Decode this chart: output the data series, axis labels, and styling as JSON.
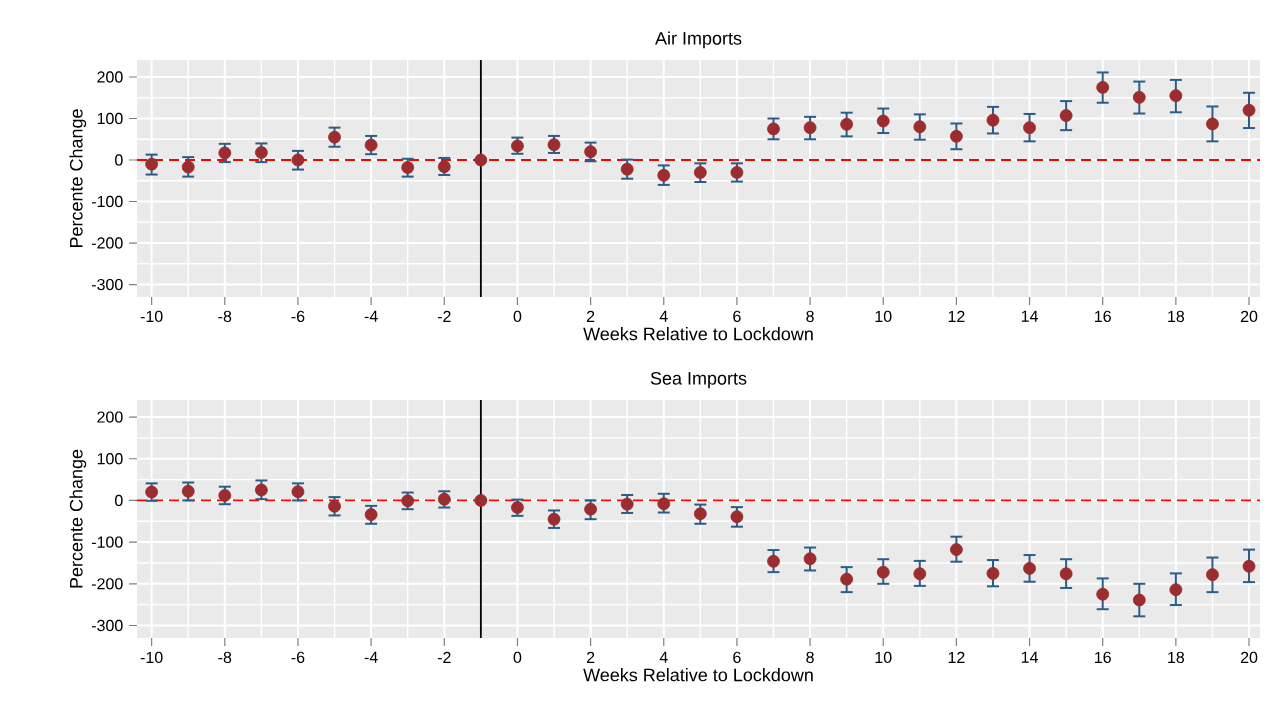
{
  "chart_data": [
    {
      "type": "scatter",
      "title": "Air Imports",
      "xlabel": "Weeks Relative to Lockdown",
      "ylabel": "Percente Change",
      "x": [
        -10,
        -9,
        -8,
        -7,
        -6,
        -5,
        -4,
        -3,
        -2,
        -1,
        0,
        1,
        2,
        3,
        4,
        5,
        6,
        7,
        8,
        9,
        10,
        11,
        12,
        13,
        14,
        15,
        16,
        17,
        18,
        19,
        20
      ],
      "series": [
        {
          "color": "#9b2d30",
          "values": [
            -10,
            -17,
            17,
            18,
            0,
            55,
            36,
            -18,
            -16,
            0,
            34,
            37,
            20,
            -22,
            -37,
            -30,
            -30,
            75,
            78,
            86,
            94,
            80,
            57,
            96,
            78,
            107,
            175,
            151,
            155,
            87,
            120
          ],
          "errors": [
            [
              -35,
              13
            ],
            [
              -40,
              7
            ],
            [
              -5,
              39
            ],
            [
              -5,
              40
            ],
            [
              -23,
              22
            ],
            [
              32,
              78
            ],
            [
              14,
              58
            ],
            [
              -40,
              3
            ],
            [
              -36,
              5
            ],
            null,
            [
              15,
              54
            ],
            [
              17,
              58
            ],
            [
              -3,
              42
            ],
            [
              -45,
              1
            ],
            [
              -60,
              -13
            ],
            [
              -53,
              -8
            ],
            [
              -52,
              -8
            ],
            [
              50,
              100
            ],
            [
              50,
              104
            ],
            [
              57,
              114
            ],
            [
              65,
              124
            ],
            [
              49,
              110
            ],
            [
              26,
              88
            ],
            [
              64,
              128
            ],
            [
              45,
              111
            ],
            [
              72,
              142
            ],
            [
              138,
              211
            ],
            [
              112,
              189
            ],
            [
              115,
              193
            ],
            [
              45,
              129
            ],
            [
              77,
              162
            ]
          ]
        }
      ],
      "xlim": [
        -10.4,
        20.3
      ],
      "ylim": [
        -330,
        241
      ],
      "xticks": [
        -10,
        -8,
        -6,
        -4,
        -2,
        0,
        2,
        4,
        6,
        8,
        10,
        12,
        14,
        16,
        18,
        20
      ],
      "yticks": [
        -300,
        -200,
        -100,
        0,
        100,
        200
      ],
      "ref_lines": [
        {
          "axis": "y",
          "value": 0,
          "color": "#ff0000",
          "line_style": "dashed"
        },
        {
          "axis": "x",
          "value": -1,
          "color": "#000000",
          "line_style": "solid"
        }
      ],
      "grid": true,
      "marker": "circle"
    },
    {
      "type": "scatter",
      "title": "Sea Imports",
      "xlabel": "Weeks Relative to Lockdown",
      "ylabel": "Percente Change",
      "x": [
        -10,
        -9,
        -8,
        -7,
        -6,
        -5,
        -4,
        -3,
        -2,
        -1,
        0,
        1,
        2,
        3,
        4,
        5,
        6,
        7,
        8,
        9,
        10,
        11,
        12,
        13,
        14,
        15,
        16,
        17,
        18,
        19,
        20
      ],
      "series": [
        {
          "color": "#9b2d30",
          "values": [
            20,
            22,
            12,
            25,
            21,
            -14,
            -34,
            -1,
            3,
            0,
            -17,
            -45,
            -21,
            -9,
            -8,
            -32,
            -39,
            -146,
            -140,
            -189,
            -172,
            -176,
            -118,
            -175,
            -163,
            -176,
            -225,
            -239,
            -214,
            -178,
            -158
          ],
          "errors": [
            [
              -1,
              41
            ],
            [
              0,
              43
            ],
            [
              -9,
              33
            ],
            [
              3,
              48
            ],
            [
              0,
              41
            ],
            [
              -36,
              8
            ],
            [
              -56,
              -13
            ],
            [
              -21,
              19
            ],
            [
              -17,
              22
            ],
            null,
            [
              -37,
              2
            ],
            [
              -66,
              -24
            ],
            [
              -45,
              0
            ],
            [
              -30,
              13
            ],
            [
              -29,
              16
            ],
            [
              -56,
              -10
            ],
            [
              -63,
              -16
            ],
            [
              -172,
              -119
            ],
            [
              -168,
              -113
            ],
            [
              -220,
              -160
            ],
            [
              -200,
              -141
            ],
            [
              -205,
              -145
            ],
            [
              -147,
              -87
            ],
            [
              -206,
              -143
            ],
            [
              -195,
              -131
            ],
            [
              -210,
              -141
            ],
            [
              -261,
              -187
            ],
            [
              -278,
              -200
            ],
            [
              -251,
              -175
            ],
            [
              -220,
              -137
            ],
            [
              -196,
              -118
            ]
          ]
        }
      ],
      "xlim": [
        -10.4,
        20.3
      ],
      "ylim": [
        -330,
        241
      ],
      "xticks": [
        -10,
        -8,
        -6,
        -4,
        -2,
        0,
        2,
        4,
        6,
        8,
        10,
        12,
        14,
        16,
        18,
        20
      ],
      "yticks": [
        -300,
        -200,
        -100,
        0,
        100,
        200
      ],
      "ref_lines": [
        {
          "axis": "y",
          "value": 0,
          "color": "#ff0000",
          "line_style": "dashed"
        },
        {
          "axis": "x",
          "value": -1,
          "color": "#000000",
          "line_style": "solid"
        }
      ],
      "grid": true,
      "marker": "circle"
    }
  ]
}
